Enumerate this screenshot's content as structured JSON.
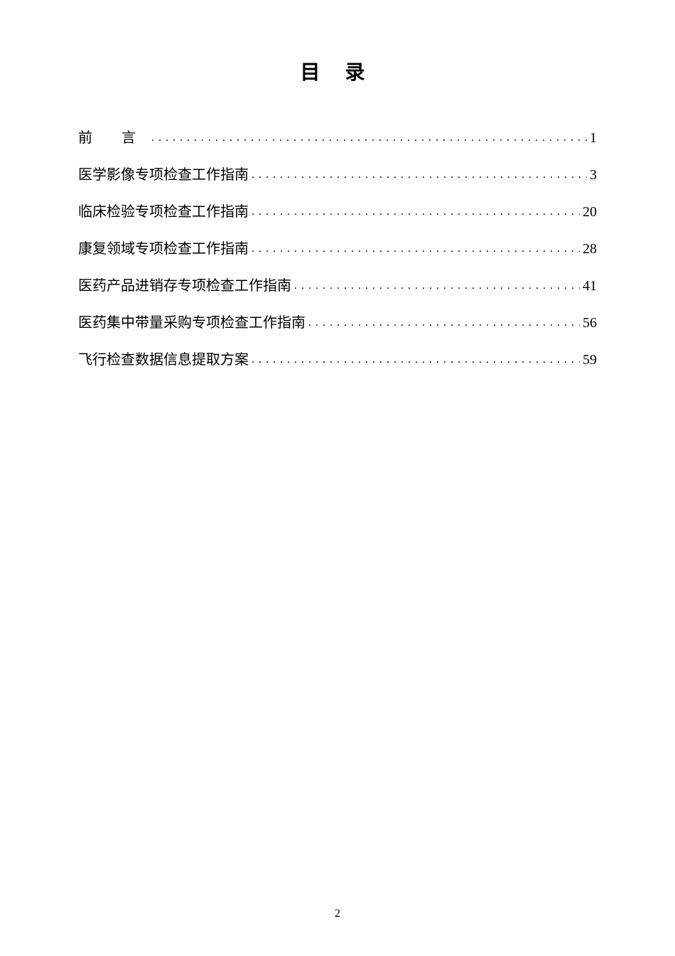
{
  "title": "目 录",
  "entries": [
    {
      "label": "前 言",
      "page": "1",
      "isPrefaceStyle": true
    },
    {
      "label": "医学影像专项检查工作指南",
      "page": "3",
      "isPrefaceStyle": false
    },
    {
      "label": "临床检验专项检查工作指南",
      "page": "20",
      "isPrefaceStyle": false
    },
    {
      "label": "康复领域专项检查工作指南",
      "page": "28",
      "isPrefaceStyle": false
    },
    {
      "label": "医药产品进销存专项检查工作指南",
      "page": "41",
      "isPrefaceStyle": false
    },
    {
      "label": "医药集中带量采购专项检查工作指南",
      "page": "56",
      "isPrefaceStyle": false
    },
    {
      "label": "飞行检查数据信息提取方案",
      "page": "59",
      "isPrefaceStyle": false
    }
  ],
  "pageNumber": "2",
  "colors": {
    "background": "#ffffff",
    "text": "#000000"
  },
  "typography": {
    "titleFontSize": 28,
    "bodyFontSize": 20,
    "pageNumFontSize": 16,
    "fontFamily": "SimSun"
  }
}
